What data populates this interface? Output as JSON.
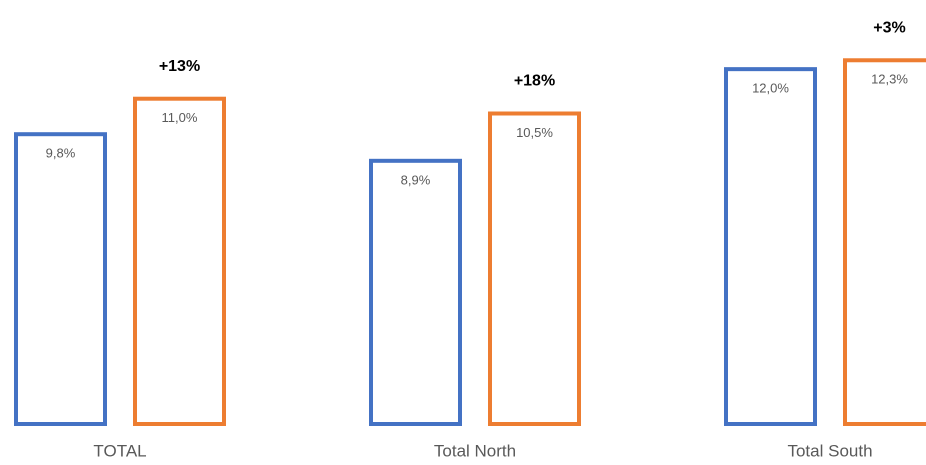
{
  "chart_data": {
    "type": "bar",
    "categories": [
      "TOTAL",
      "Total North",
      "Total South"
    ],
    "series": [
      {
        "color": "#4472c4",
        "values": [
          9.8,
          8.9,
          12.0
        ],
        "value_labels": [
          "9,8%",
          "8,9%",
          "12,0%"
        ]
      },
      {
        "color": "#ed7d31",
        "values": [
          11.0,
          10.5,
          12.3
        ],
        "value_labels": [
          "11,0%",
          "10,5%",
          "12,3%"
        ]
      }
    ],
    "annotations": [
      "+13%",
      "+18%",
      "+3%"
    ],
    "ylim": [
      0,
      14
    ]
  }
}
